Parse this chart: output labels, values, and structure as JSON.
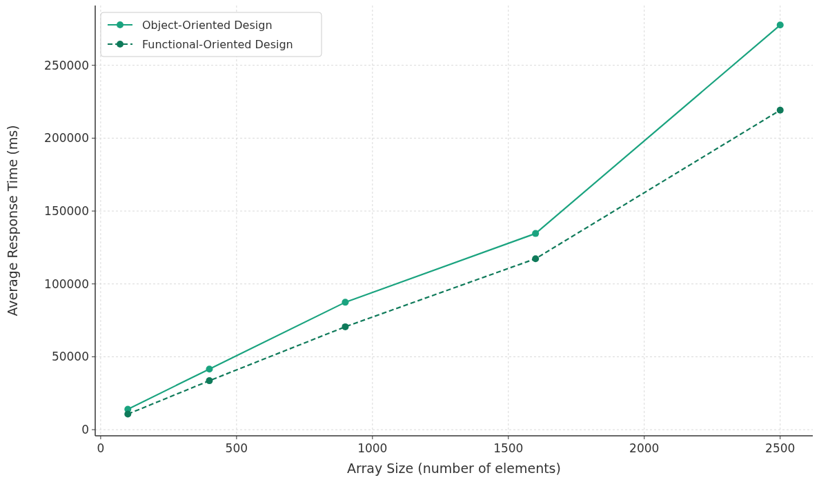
{
  "chart_data": {
    "type": "line",
    "xlabel": "Array Size (number of elements)",
    "ylabel": "Average Response Time (ms)",
    "x": [
      100,
      400,
      900,
      1600,
      2500
    ],
    "series": [
      {
        "name": "Object-Oriented Design",
        "color": "#1aa37f",
        "values": [
          14000,
          41600,
          87400,
          134600,
          277600
        ],
        "line_style": "solid"
      },
      {
        "name": "Functional-Oriented Design",
        "color": "#0f7a5a",
        "values": [
          10700,
          33600,
          70600,
          117300,
          219200
        ],
        "line_style": "dashed"
      }
    ],
    "xlim": [
      -20,
      2620
    ],
    "xticks": [
      0,
      500,
      1000,
      1500,
      2000,
      2500
    ],
    "ylim": [
      -4200,
      291000
    ],
    "yticks": [
      0,
      50000,
      100000,
      150000,
      200000,
      250000
    ],
    "grid": true,
    "legend": "top left",
    "marker": "circle"
  }
}
